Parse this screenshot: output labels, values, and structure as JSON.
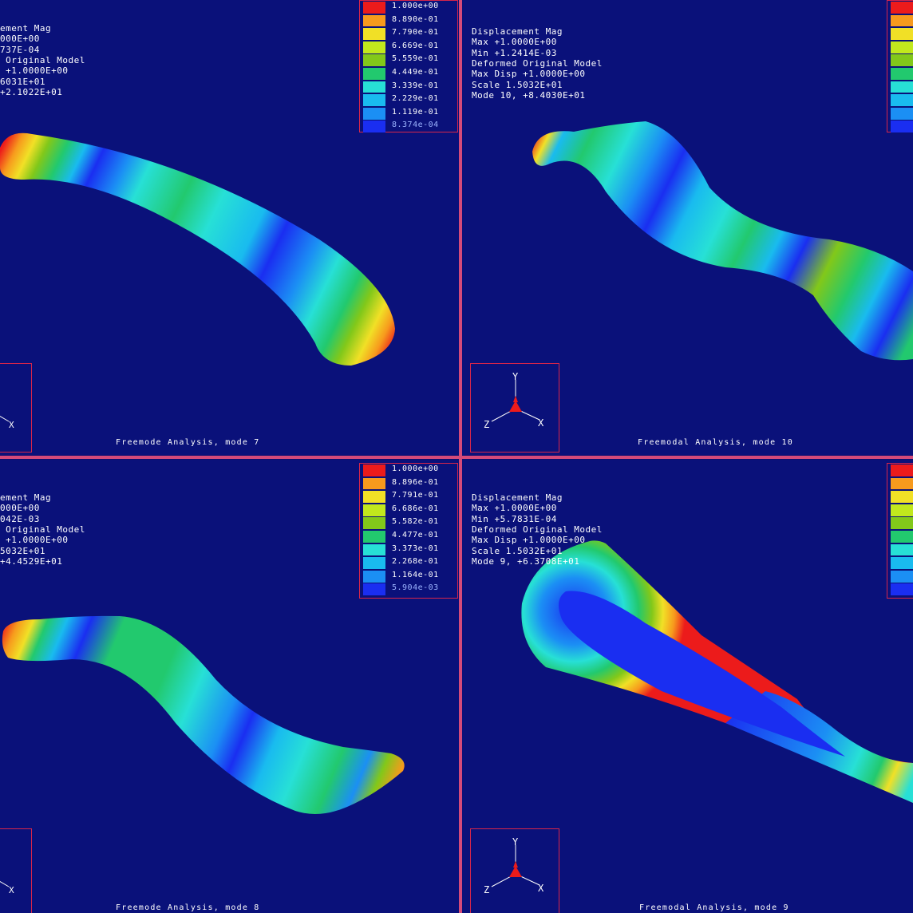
{
  "palette": [
    "#ec1b1b",
    "#f79a1d",
    "#f1e026",
    "#c1e81d",
    "#82c81a",
    "#22c96e",
    "#27e0d6",
    "#19bbef",
    "#1b8ff4",
    "#1a2ef1"
  ],
  "background": "#0a117a",
  "frame_color": "#d8264a",
  "viewports": [
    {
      "id": "mode7",
      "info": [
        "ement Mag",
        "000E+00",
        "737E-04",
        " Original Model",
        " +1.0000E+00",
        "6031E+01",
        "+2.1022E+01"
      ],
      "legend": [
        "1.000e+00",
        "8.890e-01",
        "7.790e-01",
        "6.669e-01",
        "5.559e-01",
        "4.449e-01",
        "3.339e-01",
        "2.229e-01",
        "1.119e-01",
        "8.374e-04"
      ],
      "caption": "Freemode Analysis, mode 7"
    },
    {
      "id": "mode10",
      "info": [
        "Displacement Mag",
        "Max +1.0000E+00",
        "Min +1.2414E-03",
        "Deformed Original Model",
        "Max Disp +1.0000E+00",
        "Scale 1.5032E+01",
        "Mode 10, +8.4030E+01"
      ],
      "legend": [],
      "caption": "Freemodal Analysis, mode 10"
    },
    {
      "id": "mode8",
      "info": [
        "ement Mag",
        "000E+00",
        "042E-03",
        " Original Model",
        " +1.0000E+00",
        "5032E+01",
        "+4.4529E+01"
      ],
      "legend": [
        "1.000e+00",
        "8.896e-01",
        "7.791e-01",
        "6.686e-01",
        "5.582e-01",
        "4.477e-01",
        "3.373e-01",
        "2.268e-01",
        "1.164e-01",
        "5.904e-03"
      ],
      "caption": "Freemode Analysis, mode 8"
    },
    {
      "id": "mode9",
      "info": [
        "Displacement Mag",
        "Max +1.0000E+00",
        "Min +5.7831E-04",
        "Deformed Original Model",
        "Max Disp +1.0000E+00",
        "Scale 1.5032E+01",
        "Mode 9, +6.3708E+01"
      ],
      "legend": [],
      "caption": "Freemodal Analysis, mode 9"
    }
  ],
  "triad": {
    "y_label": "Y",
    "z_label": "Z",
    "x_label": "X"
  }
}
